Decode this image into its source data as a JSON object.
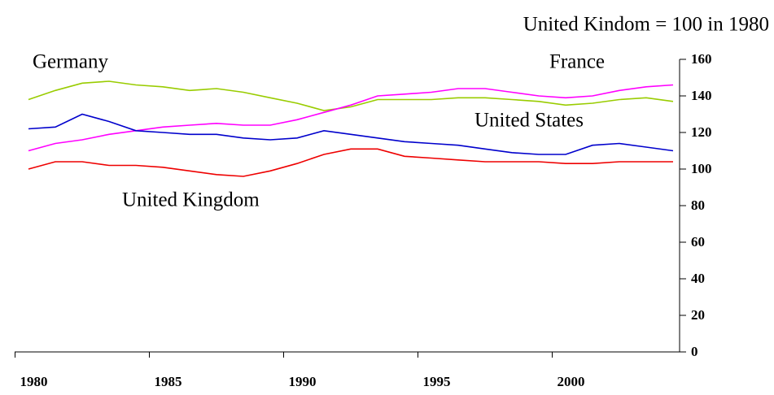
{
  "chart_data": {
    "type": "line",
    "subtitle": "United Kindom = 100 in 1980",
    "categories": [
      "1980",
      null,
      null,
      null,
      null,
      "1985",
      null,
      null,
      null,
      null,
      "1990",
      null,
      null,
      null,
      null,
      "1995",
      null,
      null,
      null,
      null,
      "2000",
      null,
      null,
      null,
      null
    ],
    "series": [
      {
        "name": "Germany",
        "color": "#99cc00",
        "values": [
          138,
          143,
          147,
          148,
          146,
          145,
          143,
          144,
          142,
          139,
          136,
          132,
          134,
          138,
          138,
          138,
          139,
          139,
          138,
          137,
          135,
          136,
          138,
          139,
          137
        ]
      },
      {
        "name": "France",
        "color": "#ff00ff",
        "values": [
          110,
          114,
          116,
          119,
          121,
          123,
          124,
          125,
          124,
          124,
          127,
          131,
          135,
          140,
          141,
          142,
          144,
          144,
          142,
          140,
          139,
          140,
          143,
          145,
          146
        ]
      },
      {
        "name": "United States",
        "color": "#0000cc",
        "values": [
          122,
          123,
          130,
          126,
          121,
          120,
          119,
          119,
          117,
          116,
          117,
          121,
          119,
          117,
          115,
          114,
          113,
          111,
          109,
          108,
          108,
          113,
          114,
          112,
          110
        ]
      },
      {
        "name": "United Kingdom",
        "color": "#ee0000",
        "values": [
          100,
          104,
          104,
          102,
          102,
          101,
          99,
          97,
          96,
          99,
          103,
          108,
          111,
          111,
          107,
          106,
          105,
          104,
          104,
          104,
          103,
          103,
          104,
          104,
          104
        ]
      }
    ],
    "ylim": [
      0,
      160
    ],
    "yticks": [
      0,
      20,
      40,
      60,
      80,
      100,
      120,
      140,
      160
    ],
    "grid": false
  }
}
